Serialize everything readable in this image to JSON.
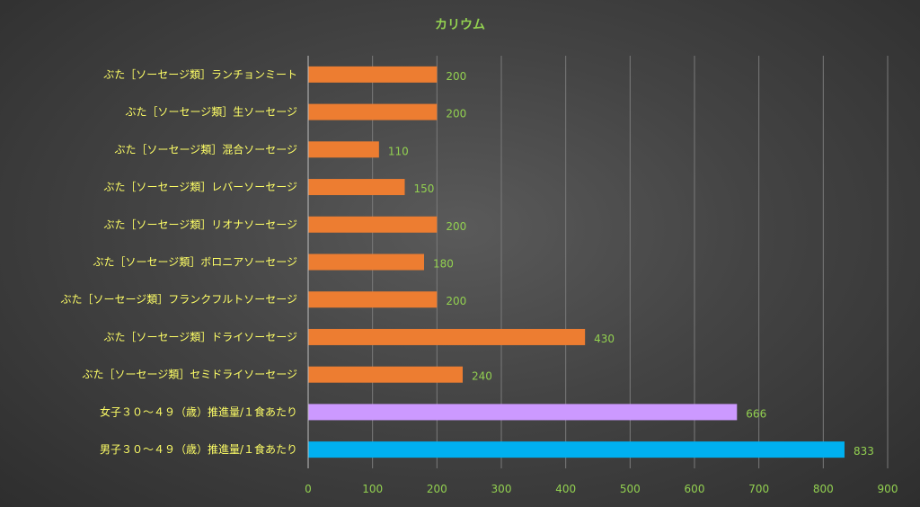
{
  "chart_data": {
    "type": "bar",
    "orientation": "horizontal",
    "title": "カリウム",
    "categories": [
      "ぶた［ソーセージ類］ランチョンミート",
      "ぶた［ソーセージ類］生ソーセージ",
      "ぶた［ソーセージ類］混合ソーセージ",
      "ぶた［ソーセージ類］レバーソーセージ",
      "ぶた［ソーセージ類］リオナソーセージ",
      "ぶた［ソーセージ類］ボロニアソーセージ",
      "ぶた［ソーセージ類］フランクフルトソーセージ",
      "ぶた［ソーセージ類］ドライソーセージ",
      "ぶた［ソーセージ類］セミドライソーセージ",
      "女子３０～４９（歳）推進量/１食あたり",
      "男子３０～４９（歳）推進量/１食あたり"
    ],
    "values": [
      200,
      200,
      110,
      150,
      200,
      180,
      200,
      430,
      240,
      666,
      833
    ],
    "bar_colors": [
      "#ed7d31",
      "#ed7d31",
      "#ed7d31",
      "#ed7d31",
      "#ed7d31",
      "#ed7d31",
      "#ed7d31",
      "#ed7d31",
      "#ed7d31",
      "#cc99ff",
      "#00b0f0"
    ],
    "xlim": [
      0,
      900
    ],
    "xticks": [
      0,
      100,
      200,
      300,
      400,
      500,
      600,
      700,
      800,
      900
    ],
    "grid": true,
    "legend": "none"
  }
}
